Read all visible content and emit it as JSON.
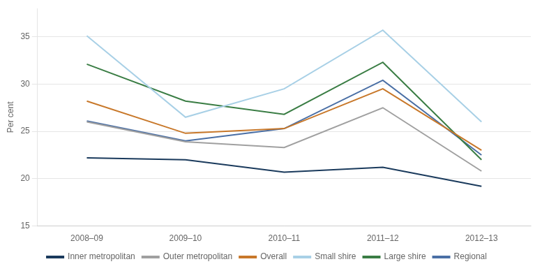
{
  "chart_data": {
    "type": "line",
    "ylabel": "Per cent",
    "categories": [
      "2008–09",
      "2009–10",
      "2010–11",
      "2011–12",
      "2012–13"
    ],
    "series": [
      {
        "name": "Inner metropolitan",
        "color": "#1a3a5c",
        "values": [
          22.2,
          22.0,
          20.7,
          21.2,
          19.2
        ]
      },
      {
        "name": "Outer metropolitan",
        "color": "#a0a0a0",
        "values": [
          26.0,
          23.9,
          23.3,
          27.5,
          20.8
        ]
      },
      {
        "name": "Overall",
        "color": "#c8782a",
        "values": [
          28.2,
          24.8,
          25.3,
          29.5,
          23.0
        ]
      },
      {
        "name": "Small shire",
        "color": "#a8d0e6",
        "values": [
          35.1,
          26.5,
          29.5,
          35.7,
          26.0
        ]
      },
      {
        "name": "Large shire",
        "color": "#3a7d44",
        "values": [
          32.1,
          28.2,
          26.8,
          32.3,
          22.0
        ]
      },
      {
        "name": "Regional",
        "color": "#4a6fa5",
        "values": [
          26.1,
          24.0,
          25.3,
          30.4,
          22.5
        ]
      }
    ],
    "ylim": [
      15,
      38
    ],
    "yticks": [
      15,
      20,
      25,
      30,
      35
    ],
    "grid": true,
    "legend": "bottom"
  }
}
